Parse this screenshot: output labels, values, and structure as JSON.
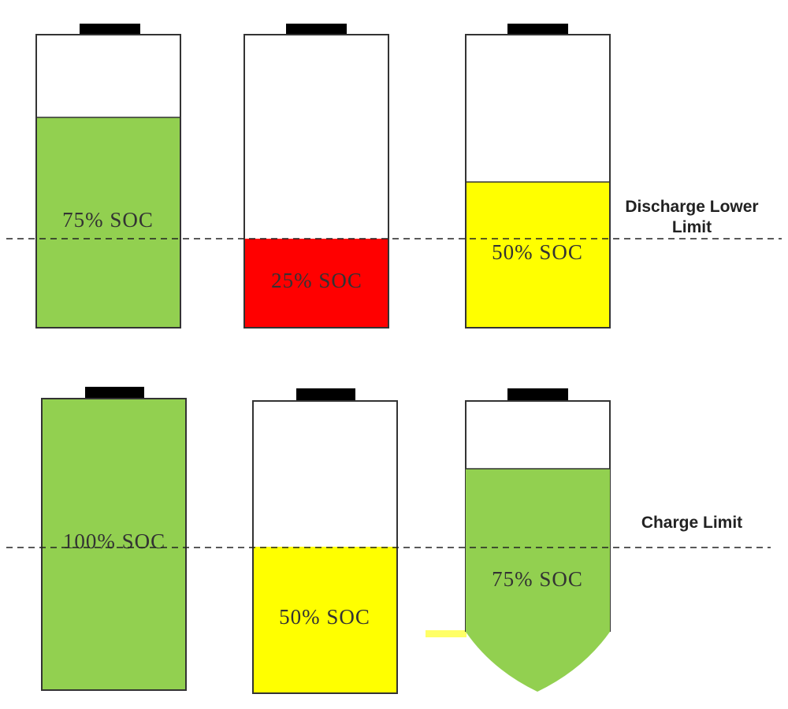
{
  "batteries": [
    {
      "label": "75% SOC"
    },
    {
      "label": "25% SOC"
    },
    {
      "label": "50% SOC"
    },
    {
      "label": "100% SOC"
    },
    {
      "label": "50% SOC"
    },
    {
      "label": "75% SOC"
    }
  ],
  "limits": {
    "discharge_lower": "Discharge Lower Limit",
    "charge": "Charge Limit"
  }
}
